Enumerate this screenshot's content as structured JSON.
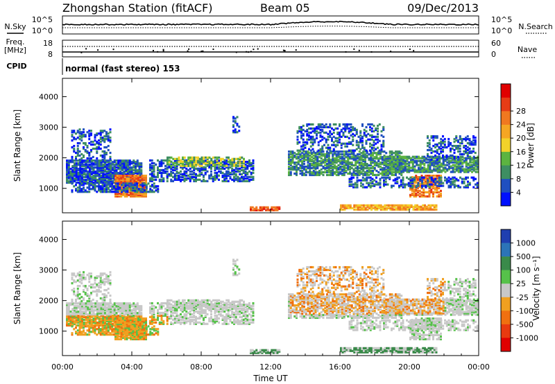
{
  "header": {
    "station": "Zhongshan Station (fitACF)",
    "beam": "Beam 05",
    "date": "09/Dec/2013"
  },
  "top_panel": {
    "left_label": "N.Sky",
    "left_ticks": [
      "10^5",
      "10^0"
    ],
    "right_label": "N.Search",
    "right_ticks": [
      "10^5",
      "10^0"
    ]
  },
  "freq_panel": {
    "left_label_line1": "Freq.",
    "left_label_line2": "[MHz]",
    "left_ticks": [
      "18",
      "8"
    ],
    "right_label": "Nave",
    "right_ticks": [
      "60",
      "0"
    ]
  },
  "cpid_panel": {
    "label": "CPID",
    "text": "normal (fast stereo) 153"
  },
  "chart_data": [
    {
      "type": "heatmap",
      "name": "power-panel",
      "ylabel": "Slant Range [km]",
      "yticks": [
        "1000",
        "2000",
        "3000",
        "4000"
      ],
      "ylim": [
        200,
        4600
      ],
      "x_range_hours": [
        0,
        24
      ],
      "colorbar": {
        "label": "Power [dB]",
        "ticks": [
          "4",
          "8",
          "12",
          "16",
          "20",
          "24",
          "28"
        ],
        "colors": [
          "#0010ff",
          "#1f4fc0",
          "#3e8e62",
          "#5cb440",
          "#f2d22a",
          "#f5a623",
          "#f07820",
          "#e63c16",
          "#e00000"
        ]
      }
    },
    {
      "type": "heatmap",
      "name": "velocity-panel",
      "ylabel": "Slant Range [km]",
      "yticks": [
        "1000",
        "2000",
        "3000",
        "4000"
      ],
      "ylim": [
        200,
        4600
      ],
      "x_range_hours": [
        0,
        24
      ],
      "xlabel": "Time UT",
      "xticks": [
        "00:00",
        "04:00",
        "08:00",
        "12:00",
        "16:00",
        "20:00",
        "00:00"
      ],
      "colorbar": {
        "label": "Velocity [m s⁻¹]",
        "ticks": [
          "1000",
          "500",
          "100",
          "25",
          "-25",
          "-100",
          "-500",
          "-1000"
        ],
        "colors": [
          "#1f3fb0",
          "#2c74b8",
          "#3a8a4a",
          "#56c24a",
          "#c8c8c8",
          "#f0a020",
          "#f07010",
          "#e83a10",
          "#e00000"
        ]
      }
    }
  ]
}
